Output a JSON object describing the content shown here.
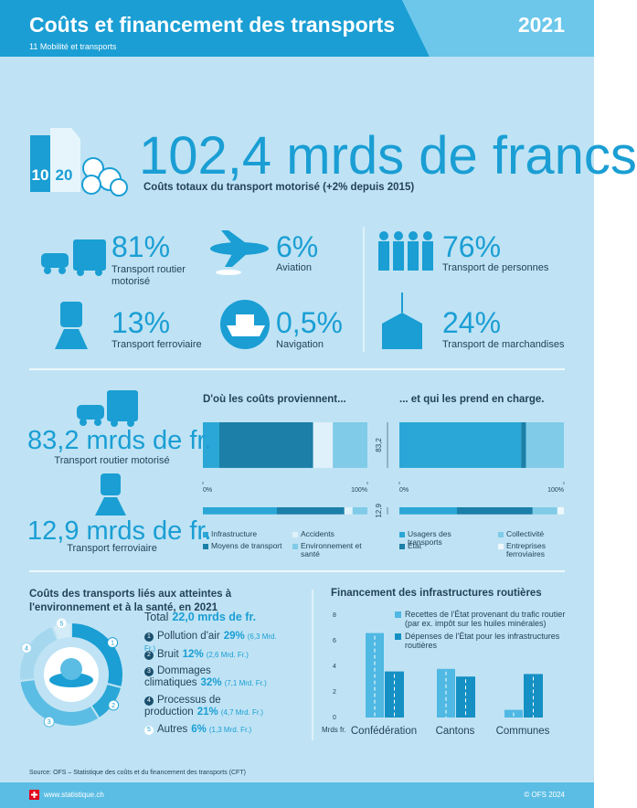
{
  "header": {
    "title": "Coûts et financement des transports",
    "subtitle": "11 Mobilité et transports",
    "year": "2021"
  },
  "hero": {
    "total": "102,4 mrds de francs",
    "caption": "Coûts totaux du transport motorisé (+2% depuis 2015)",
    "icon_labels": [
      "10",
      "20"
    ]
  },
  "shares": [
    {
      "value": "81%",
      "label": "Transport routier motorisé"
    },
    {
      "value": "6%",
      "label": "Aviation"
    },
    {
      "value": "76%",
      "label": "Transport de personnes"
    },
    {
      "value": "13%",
      "label": "Transport ferroviaire"
    },
    {
      "value": "0,5%",
      "label": "Navigation"
    },
    {
      "value": "24%",
      "label": "Transport de marchandises"
    }
  ],
  "modes": [
    {
      "total": "83,2 mrds de fr.",
      "label": "Transport routier motorisé"
    },
    {
      "total": "12,9 mrds de fr.",
      "label": "Transport ferroviaire"
    }
  ],
  "chart_data": [
    {
      "type": "stacked_bar_h",
      "title": "D'où les coûts proviennent...",
      "categories": [
        null,
        null
      ],
      "row_sizes": [
        83.2,
        12.9
      ],
      "xlim": [
        0,
        100
      ],
      "xticks": [
        {
          "value": 0,
          "label": "0%"
        },
        {
          "value": 100,
          "label": "100%"
        }
      ],
      "series": [
        {
          "name": "Infrastructure",
          "color": "#2aa7d6",
          "values": [
            10,
            45
          ]
        },
        {
          "name": "Moyens de transport",
          "color": "#1b7fa8",
          "values": [
            57,
            41
          ]
        },
        {
          "name": "Accidents",
          "color": "#dff1fa",
          "values": [
            12,
            5
          ]
        },
        {
          "name": "Environnement et santé",
          "color": "#7fcbe8",
          "values": [
            21,
            9
          ]
        }
      ]
    },
    {
      "type": "stacked_bar_h",
      "title": "... et qui les prend en charge.",
      "categories": [
        "83,2",
        "12,9"
      ],
      "row_sizes": [
        83.2,
        12.9
      ],
      "xlim": [
        0,
        100
      ],
      "xticks": [
        {
          "value": 0,
          "label": "0%"
        },
        {
          "value": 100,
          "label": "100%"
        }
      ],
      "series": [
        {
          "name": "Usagers des transports",
          "color": "#2aa7d6",
          "values": [
            74,
            35
          ]
        },
        {
          "name": "État",
          "color": "#1b7fa8",
          "values": [
            3,
            46
          ]
        },
        {
          "name": "Collectivité",
          "color": "#7fcbe8",
          "values": [
            23,
            15
          ]
        },
        {
          "name": "Entreprises ferroviaires",
          "color": "#eef8fc",
          "values": [
            0,
            4
          ]
        }
      ]
    },
    {
      "type": "donut",
      "title": "Coûts des transports liés aux atteintes à l'environnement et à la santé, en 2021",
      "total_label": "Total",
      "total": "22,0 mrds de fr.",
      "categories": [
        "Pollution d'air",
        "Bruit",
        "Dommages climatiques",
        "Processus de production",
        "Autres"
      ],
      "markers": [
        "1",
        "2",
        "3",
        "4",
        "5"
      ],
      "values": [
        29,
        12,
        32,
        21,
        6
      ],
      "value_labels": [
        "29%",
        "12%",
        "32%",
        "21%",
        "6%"
      ],
      "notes": [
        "(6,3 Mrd. Fr.)",
        "(2,6 Mrd. Fr.)",
        "(7,1 Mrd. Fr.)",
        "(4,7 Mrd. Fr.)",
        "(1,3 Mrd. Fr.)"
      ],
      "colors": [
        "#1a9ed4",
        "#2aa7d6",
        "#5bbde4",
        "#a5d8ef",
        "#d3ecf7"
      ]
    },
    {
      "type": "bar",
      "title": "Financement des infrastructures routières",
      "categories": [
        "Confédération",
        "Cantons",
        "Communes"
      ],
      "ylabel": "Mrds fr.",
      "ylim": [
        0,
        8
      ],
      "yticks": [
        0,
        2,
        4,
        6,
        8
      ],
      "series": [
        {
          "name": "Recettes de l'État provenant du trafic routier (par ex. impôt sur les huiles minérales)",
          "color": "#4fb8e3",
          "values": [
            6.6,
            3.8,
            0.6
          ]
        },
        {
          "name": "Dépenses de l'État pour les infrastructures routières",
          "color": "#1590c4",
          "values": [
            3.6,
            3.2,
            3.4
          ]
        }
      ]
    }
  ],
  "source": "Source: OFS – Statistique des coûts et du financement des transports (CFT)",
  "footer": {
    "site": "www.statistique.ch",
    "copyright": "© OFS 2024"
  }
}
